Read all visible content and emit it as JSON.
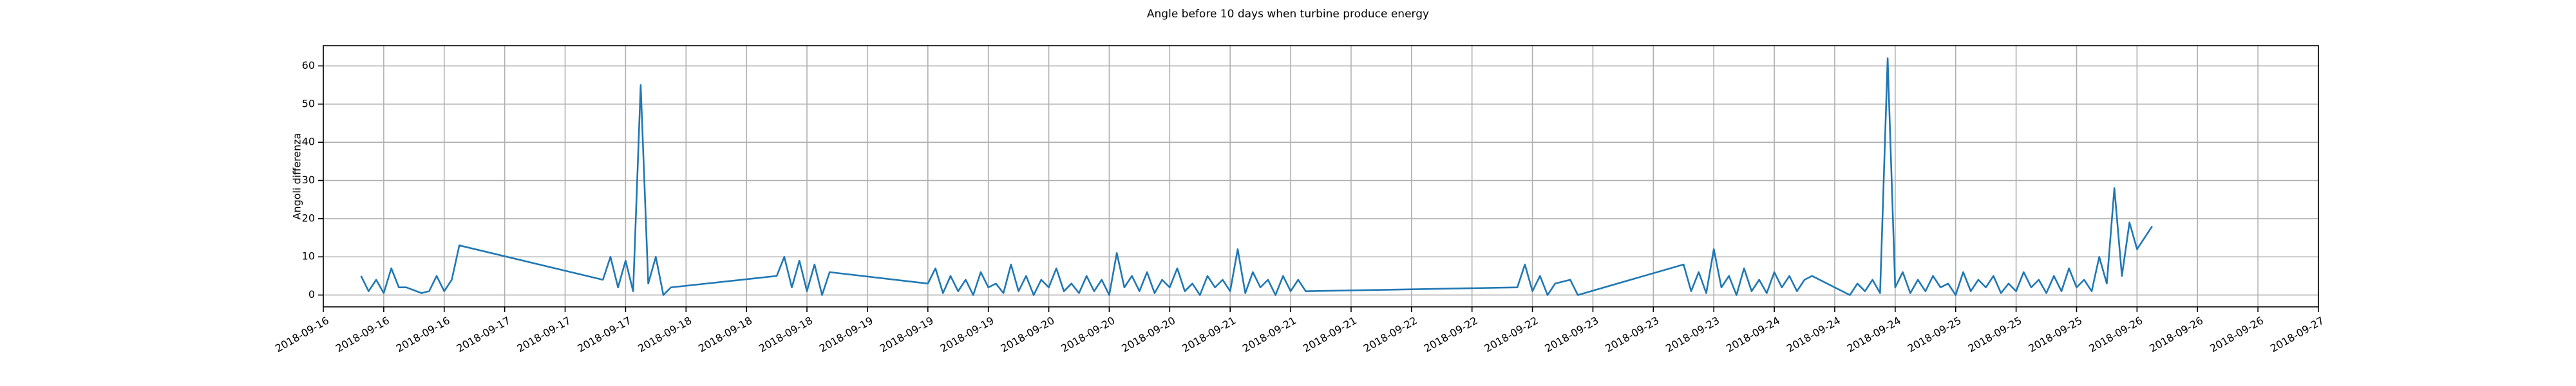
{
  "chart_data": {
    "type": "line",
    "title": "Angle before 10 days when turbine produce energy",
    "y_label": "Angoli differenza",
    "color": "#1f77b4",
    "grid": true,
    "xlim": [
      "2018-09-16T00:00",
      "2018-09-27T00:00"
    ],
    "ylim": [
      -3.1,
      65.3
    ],
    "yticks": [
      0,
      10,
      20,
      30,
      40,
      50,
      60
    ],
    "xticks": [
      {
        "value": "2018-09-16T00:00",
        "label": "2018-09-16"
      },
      {
        "value": "2018-09-16T08:00",
        "label": "2018-09-16"
      },
      {
        "value": "2018-09-16T16:00",
        "label": "2018-09-16"
      },
      {
        "value": "2018-09-17T00:00",
        "label": "2018-09-17"
      },
      {
        "value": "2018-09-17T08:00",
        "label": "2018-09-17"
      },
      {
        "value": "2018-09-17T16:00",
        "label": "2018-09-17"
      },
      {
        "value": "2018-09-18T00:00",
        "label": "2018-09-18"
      },
      {
        "value": "2018-09-18T08:00",
        "label": "2018-09-18"
      },
      {
        "value": "2018-09-18T16:00",
        "label": "2018-09-18"
      },
      {
        "value": "2018-09-19T00:00",
        "label": "2018-09-19"
      },
      {
        "value": "2018-09-19T08:00",
        "label": "2018-09-19"
      },
      {
        "value": "2018-09-19T16:00",
        "label": "2018-09-19"
      },
      {
        "value": "2018-09-20T00:00",
        "label": "2018-09-20"
      },
      {
        "value": "2018-09-20T08:00",
        "label": "2018-09-20"
      },
      {
        "value": "2018-09-20T16:00",
        "label": "2018-09-20"
      },
      {
        "value": "2018-09-21T00:00",
        "label": "2018-09-21"
      },
      {
        "value": "2018-09-21T08:00",
        "label": "2018-09-21"
      },
      {
        "value": "2018-09-21T16:00",
        "label": "2018-09-21"
      },
      {
        "value": "2018-09-22T00:00",
        "label": "2018-09-22"
      },
      {
        "value": "2018-09-22T08:00",
        "label": "2018-09-22"
      },
      {
        "value": "2018-09-22T16:00",
        "label": "2018-09-22"
      },
      {
        "value": "2018-09-23T00:00",
        "label": "2018-09-23"
      },
      {
        "value": "2018-09-23T08:00",
        "label": "2018-09-23"
      },
      {
        "value": "2018-09-23T16:00",
        "label": "2018-09-23"
      },
      {
        "value": "2018-09-24T00:00",
        "label": "2018-09-24"
      },
      {
        "value": "2018-09-24T08:00",
        "label": "2018-09-24"
      },
      {
        "value": "2018-09-24T16:00",
        "label": "2018-09-24"
      },
      {
        "value": "2018-09-25T00:00",
        "label": "2018-09-25"
      },
      {
        "value": "2018-09-25T08:00",
        "label": "2018-09-25"
      },
      {
        "value": "2018-09-25T16:00",
        "label": "2018-09-25"
      },
      {
        "value": "2018-09-26T00:00",
        "label": "2018-09-26"
      },
      {
        "value": "2018-09-26T08:00",
        "label": "2018-09-26"
      },
      {
        "value": "2018-09-26T16:00",
        "label": "2018-09-26"
      },
      {
        "value": "2018-09-27T00:00",
        "label": "2018-09-27"
      }
    ],
    "x": [
      "2018-09-16T05:00",
      "2018-09-16T06:00",
      "2018-09-16T07:00",
      "2018-09-16T08:00",
      "2018-09-16T09:00",
      "2018-09-16T10:00",
      "2018-09-16T11:00",
      "2018-09-16T13:00",
      "2018-09-16T14:00",
      "2018-09-16T15:00",
      "2018-09-16T16:00",
      "2018-09-16T17:00",
      "2018-09-16T18:00",
      "2018-09-17T13:00",
      "2018-09-17T14:00",
      "2018-09-17T15:00",
      "2018-09-17T16:00",
      "2018-09-17T17:00",
      "2018-09-17T18:00",
      "2018-09-17T19:00",
      "2018-09-17T20:00",
      "2018-09-17T21:00",
      "2018-09-17T22:00",
      "2018-09-18T12:00",
      "2018-09-18T13:00",
      "2018-09-18T14:00",
      "2018-09-18T15:00",
      "2018-09-18T16:00",
      "2018-09-18T17:00",
      "2018-09-18T18:00",
      "2018-09-18T19:00",
      "2018-09-19T08:00",
      "2018-09-19T09:00",
      "2018-09-19T10:00",
      "2018-09-19T11:00",
      "2018-09-19T12:00",
      "2018-09-19T13:00",
      "2018-09-19T14:00",
      "2018-09-19T15:00",
      "2018-09-19T16:00",
      "2018-09-19T17:00",
      "2018-09-19T18:00",
      "2018-09-19T19:00",
      "2018-09-19T20:00",
      "2018-09-19T21:00",
      "2018-09-19T22:00",
      "2018-09-19T23:00",
      "2018-09-20T00:00",
      "2018-09-20T01:00",
      "2018-09-20T02:00",
      "2018-09-20T03:00",
      "2018-09-20T04:00",
      "2018-09-20T05:00",
      "2018-09-20T06:00",
      "2018-09-20T07:00",
      "2018-09-20T08:00",
      "2018-09-20T09:00",
      "2018-09-20T10:00",
      "2018-09-20T11:00",
      "2018-09-20T12:00",
      "2018-09-20T13:00",
      "2018-09-20T14:00",
      "2018-09-20T15:00",
      "2018-09-20T16:00",
      "2018-09-20T17:00",
      "2018-09-20T18:00",
      "2018-09-20T19:00",
      "2018-09-20T20:00",
      "2018-09-20T21:00",
      "2018-09-20T22:00",
      "2018-09-20T23:00",
      "2018-09-21T00:00",
      "2018-09-21T01:00",
      "2018-09-21T02:00",
      "2018-09-21T03:00",
      "2018-09-21T04:00",
      "2018-09-21T05:00",
      "2018-09-21T06:00",
      "2018-09-21T07:00",
      "2018-09-21T08:00",
      "2018-09-21T09:00",
      "2018-09-21T10:00",
      "2018-09-22T14:00",
      "2018-09-22T15:00",
      "2018-09-22T16:00",
      "2018-09-22T17:00",
      "2018-09-22T18:00",
      "2018-09-22T19:00",
      "2018-09-22T21:00",
      "2018-09-22T22:00",
      "2018-09-23T12:00",
      "2018-09-23T13:00",
      "2018-09-23T14:00",
      "2018-09-23T15:00",
      "2018-09-23T16:00",
      "2018-09-23T17:00",
      "2018-09-23T18:00",
      "2018-09-23T19:00",
      "2018-09-23T20:00",
      "2018-09-23T21:00",
      "2018-09-23T22:00",
      "2018-09-23T23:00",
      "2018-09-24T00:00",
      "2018-09-24T01:00",
      "2018-09-24T02:00",
      "2018-09-24T03:00",
      "2018-09-24T04:00",
      "2018-09-24T05:00",
      "2018-09-24T10:00",
      "2018-09-24T11:00",
      "2018-09-24T12:00",
      "2018-09-24T13:00",
      "2018-09-24T14:00",
      "2018-09-24T15:00",
      "2018-09-24T16:00",
      "2018-09-24T17:00",
      "2018-09-24T18:00",
      "2018-09-24T19:00",
      "2018-09-24T20:00",
      "2018-09-24T21:00",
      "2018-09-24T22:00",
      "2018-09-24T23:00",
      "2018-09-25T00:00",
      "2018-09-25T01:00",
      "2018-09-25T02:00",
      "2018-09-25T03:00",
      "2018-09-25T04:00",
      "2018-09-25T05:00",
      "2018-09-25T06:00",
      "2018-09-25T07:00",
      "2018-09-25T08:00",
      "2018-09-25T09:00",
      "2018-09-25T10:00",
      "2018-09-25T11:00",
      "2018-09-25T12:00",
      "2018-09-25T13:00",
      "2018-09-25T14:00",
      "2018-09-25T15:00",
      "2018-09-25T16:00",
      "2018-09-25T17:00",
      "2018-09-25T18:00",
      "2018-09-25T19:00",
      "2018-09-25T20:00",
      "2018-09-25T21:00",
      "2018-09-25T22:00",
      "2018-09-25T23:00",
      "2018-09-26T00:00",
      "2018-09-26T01:00",
      "2018-09-26T02:00"
    ],
    "values": [
      5,
      1,
      4,
      0.5,
      7,
      2,
      2,
      0.5,
      1,
      5,
      1,
      4,
      13,
      4,
      10,
      2,
      9,
      1,
      55,
      3,
      10,
      0,
      2,
      5,
      10,
      2,
      9,
      1,
      8,
      0,
      6,
      3,
      7,
      0.5,
      5,
      1,
      4,
      0,
      6,
      2,
      3,
      0.5,
      8,
      1,
      5,
      0,
      4,
      2,
      7,
      1,
      3,
      0.5,
      5,
      1,
      4,
      0,
      11,
      2,
      5,
      1,
      6,
      0.5,
      4,
      2,
      7,
      1,
      3,
      0,
      5,
      2,
      4,
      1,
      12,
      0.5,
      6,
      2,
      4,
      0,
      5,
      1,
      4,
      1,
      2,
      8,
      1,
      5,
      0,
      3,
      4,
      0,
      8,
      1,
      6,
      0.5,
      12,
      2,
      5,
      0,
      7,
      1,
      4,
      0.5,
      6,
      2,
      5,
      1,
      4,
      5,
      0,
      3,
      1,
      4,
      0.5,
      62,
      2,
      6,
      0.5,
      4,
      1,
      5,
      2,
      3,
      0,
      6,
      1,
      4,
      2,
      5,
      0.5,
      3,
      1,
      6,
      2,
      4,
      0.5,
      5,
      1,
      7,
      2,
      4,
      1,
      10,
      3,
      28,
      5,
      19,
      12,
      15,
      18
    ]
  }
}
